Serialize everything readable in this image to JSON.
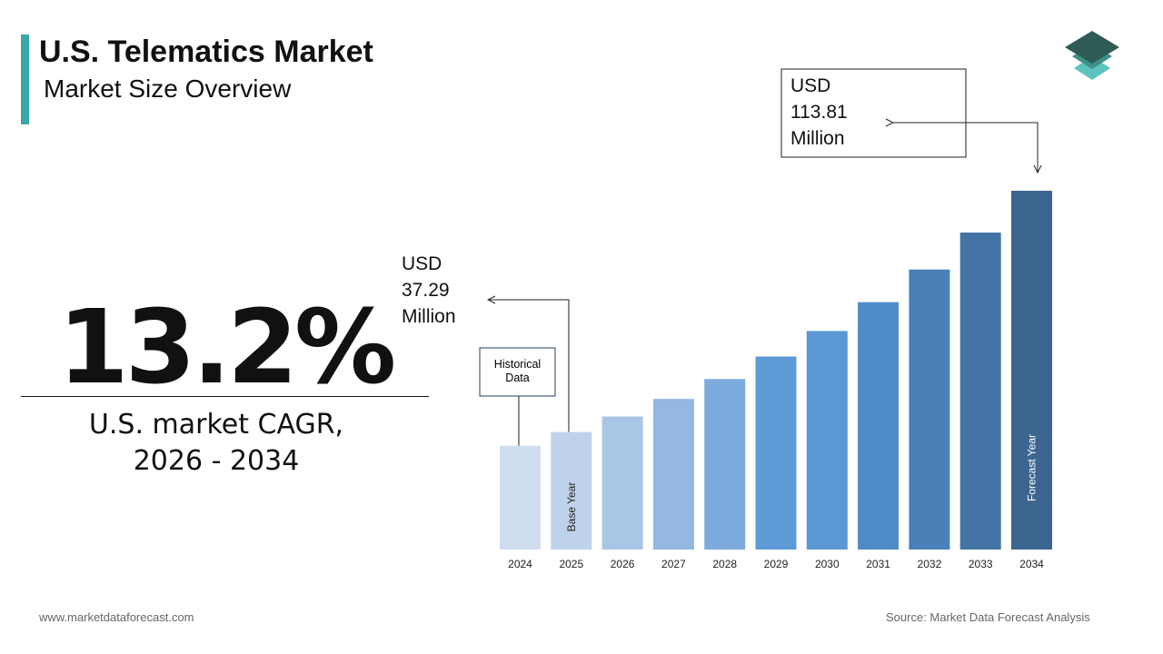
{
  "header": {
    "title": "U.S. Telematics Market",
    "subtitle": "Market Size Overview"
  },
  "cagr": {
    "value": "13.2%",
    "label": "U.S. market CAGR, 2026 - 2034"
  },
  "chart_data": {
    "type": "bar",
    "categories": [
      "2024",
      "2025",
      "2026",
      "2027",
      "2028",
      "2029",
      "2030",
      "2031",
      "2032",
      "2033",
      "2034"
    ],
    "values": [
      32.94,
      37.29,
      42.21,
      47.79,
      54.09,
      61.23,
      69.32,
      78.47,
      88.83,
      100.55,
      113.81
    ],
    "value_labels": [
      null,
      "USD 37.29 Million",
      null,
      null,
      null,
      null,
      null,
      null,
      null,
      null,
      "USD 113.81 Million"
    ],
    "colors": [
      "#d0ddef",
      "#bfd2ec",
      "#aac6e6",
      "#94b8e0",
      "#7eabdd",
      "#5e9ad6",
      "#5b97d2",
      "#4f8bc6",
      "#4a80b8",
      "#4474a6",
      "#3c6690"
    ],
    "annotations": {
      "historical": "Historical Data",
      "base": "Base Year",
      "forecast": "Forecast Year"
    }
  },
  "footer": {
    "website": "www.marketdataforecast.com",
    "source": "Source: Market Data Forecast Analysis"
  }
}
